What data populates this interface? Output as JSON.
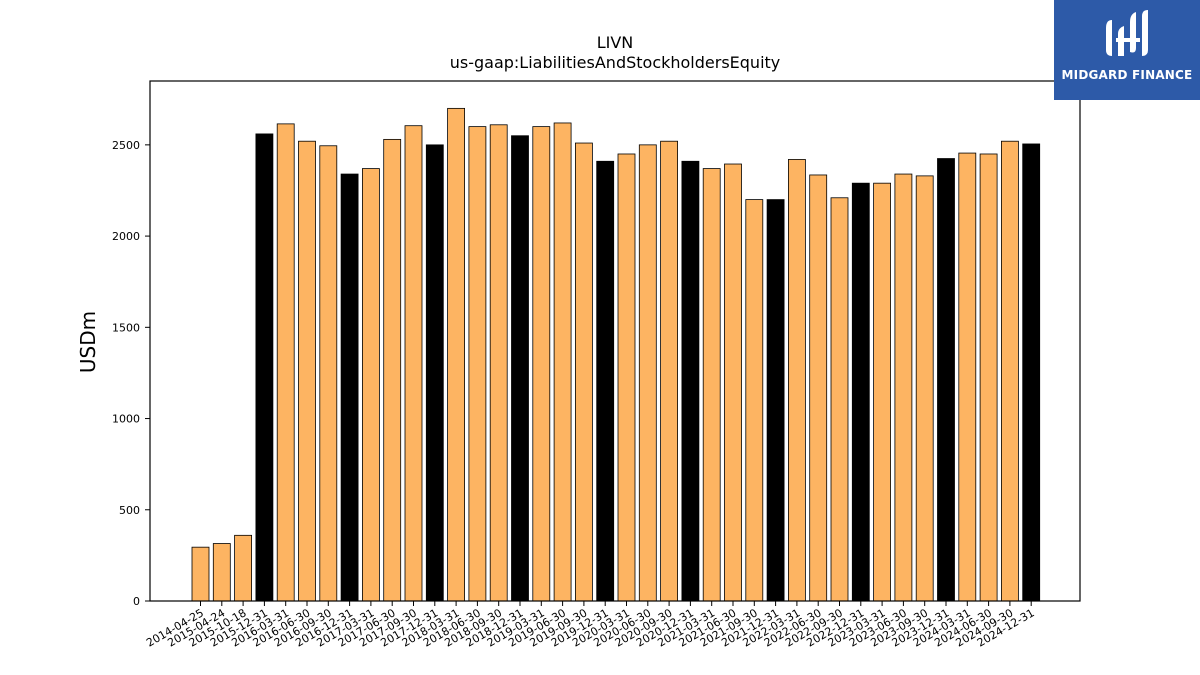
{
  "chart_data": {
    "type": "bar",
    "title": "LIVN",
    "subtitle": "us-gaap:LiabilitiesAndStockholdersEquity",
    "xlabel": "",
    "ylabel": "USDm",
    "ylim": [
      0,
      2850
    ],
    "yticks": [
      0,
      500,
      1000,
      1500,
      2000,
      2500
    ],
    "grid": false,
    "colors": {
      "quarter": "#fdb462",
      "year_end": "#000000",
      "edge": "#000000"
    },
    "categories": [
      "2014-04-25",
      "2015-04-24",
      "2015-10-18",
      "2015-12-31",
      "2016-03-31",
      "2016-06-30",
      "2016-09-30",
      "2016-12-31",
      "2017-03-31",
      "2017-06-30",
      "2017-09-30",
      "2017-12-31",
      "2018-03-31",
      "2018-06-30",
      "2018-09-30",
      "2018-12-31",
      "2019-03-31",
      "2019-06-30",
      "2019-09-30",
      "2019-12-31",
      "2020-03-31",
      "2020-06-30",
      "2020-09-30",
      "2020-12-31",
      "2021-03-31",
      "2021-06-30",
      "2021-09-30",
      "2021-12-31",
      "2022-03-31",
      "2022-06-30",
      "2022-09-30",
      "2022-12-31",
      "2023-03-31",
      "2023-06-30",
      "2023-09-30",
      "2023-12-31",
      "2024-03-31",
      "2024-06-30",
      "2024-09-30",
      "2024-12-31"
    ],
    "values": [
      295,
      315,
      360,
      2560,
      2615,
      2520,
      2495,
      2340,
      2370,
      2530,
      2605,
      2500,
      2700,
      2600,
      2610,
      2550,
      2600,
      2620,
      2510,
      2410,
      2450,
      2500,
      2520,
      2410,
      2370,
      2395,
      2200,
      2200,
      2420,
      2335,
      2210,
      2290,
      2290,
      2340,
      2330,
      2425,
      2455,
      2450,
      2520,
      2505
    ],
    "year_end": [
      false,
      false,
      false,
      true,
      false,
      false,
      false,
      true,
      false,
      false,
      false,
      true,
      false,
      false,
      false,
      true,
      false,
      false,
      false,
      true,
      false,
      false,
      false,
      true,
      false,
      false,
      false,
      true,
      false,
      false,
      false,
      true,
      false,
      false,
      false,
      true,
      false,
      false,
      false,
      true
    ]
  },
  "logo": {
    "text": "MIDGARD FINANCE",
    "icon": "midgard-logo-icon"
  }
}
